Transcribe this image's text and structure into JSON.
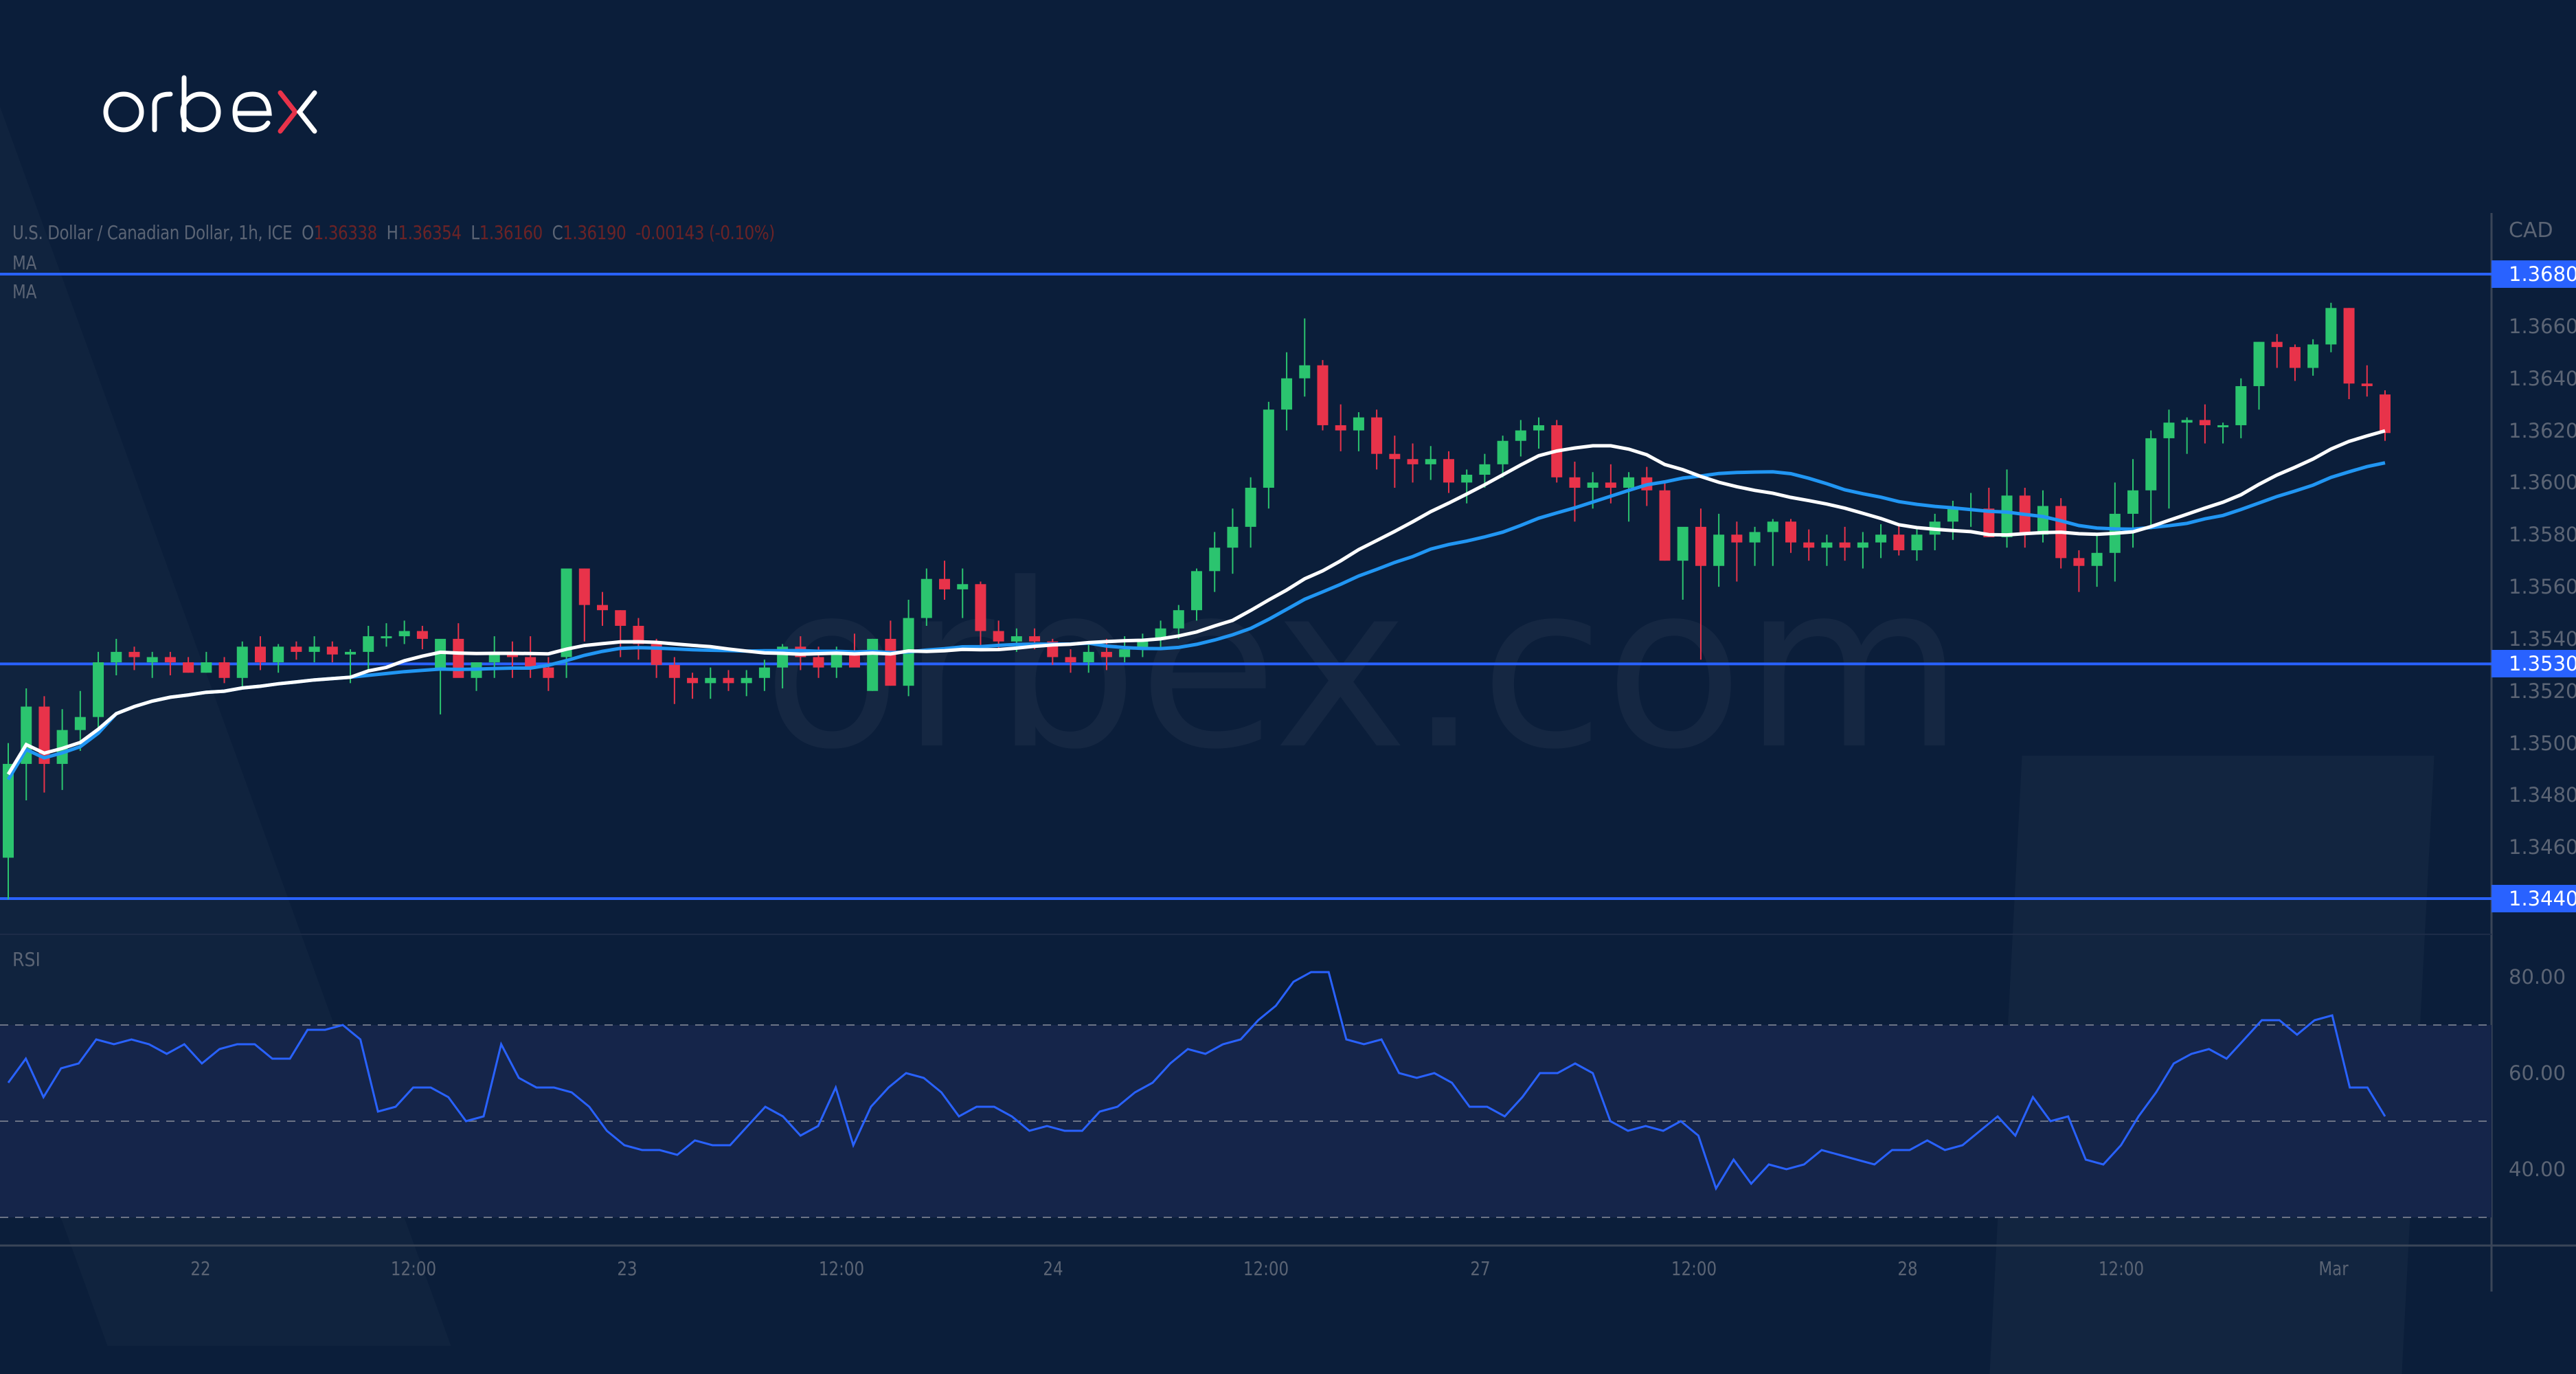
{
  "brand": {
    "logo_text": "orbex",
    "watermark_text": "orbex.com",
    "logo_color": "#ffffff",
    "logo_accent": "#e8334a"
  },
  "header": {
    "symbol": "U.S. Dollar / Canadian Dollar, 1h, ICE",
    "open_label": "O",
    "open": "1.36338",
    "high_label": "H",
    "high": "1.36354",
    "low_label": "L",
    "low": "1.36160",
    "close_label": "C",
    "close": "1.36190",
    "change": "-0.00143 (-0.10%)",
    "ma1_label": "MA",
    "ma2_label": "MA"
  },
  "price_axis": {
    "currency": "CAD",
    "ticks": [
      "1.36600",
      "1.36400",
      "1.36200",
      "1.36000",
      "1.35800",
      "1.35600",
      "1.35400",
      "1.35200",
      "1.35000",
      "1.34800",
      "1.34600"
    ],
    "levels": [
      {
        "label": "1.36800",
        "price": 1.368
      },
      {
        "label": "1.35304",
        "price": 1.35304
      },
      {
        "label": "1.34403",
        "price": 1.34403
      }
    ]
  },
  "rsi_panel": {
    "label": "RSI",
    "ticks": [
      "80.00",
      "60.00",
      "40.00"
    ],
    "upper_band": 70,
    "middle_band": 50,
    "lower_band": 30
  },
  "time_axis": {
    "ticks": [
      "22",
      "12:00",
      "23",
      "12:00",
      "24",
      "12:00",
      "27",
      "12:00",
      "28",
      "12:00",
      "Mar"
    ]
  },
  "colors": {
    "background": "#0b1e3a",
    "up": "#2bc46f",
    "down": "#e8334a",
    "level_line": "#2962ff",
    "ma_fast": "#ffffff",
    "ma_slow": "#2196f3",
    "rsi_line": "#2962ff",
    "rsi_band_fill": "#15254a"
  },
  "chart_data": {
    "type": "candlestick",
    "title": "U.S. Dollar / Canadian Dollar, 1h, ICE",
    "xlabel": "",
    "ylabel": "CAD",
    "ylim": [
      1.3432,
      1.37
    ],
    "x_ticks": [
      "22",
      "12:00",
      "23",
      "12:00",
      "24",
      "12:00",
      "27",
      "12:00",
      "28",
      "12:00",
      "Mar"
    ],
    "horizontal_levels": [
      1.368,
      1.35304,
      1.34403
    ],
    "last_bar": {
      "open": 1.36338,
      "high": 1.36354,
      "low": 1.3616,
      "close": 1.3619
    },
    "candles_ohlc": [
      [
        1.3456,
        1.35,
        1.344,
        1.3492
      ],
      [
        1.3492,
        1.3521,
        1.3478,
        1.3514
      ],
      [
        1.3514,
        1.3518,
        1.3481,
        1.3492
      ],
      [
        1.3492,
        1.3513,
        1.3482,
        1.3505
      ],
      [
        1.3505,
        1.352,
        1.3497,
        1.351
      ],
      [
        1.351,
        1.3535,
        1.3505,
        1.3531
      ],
      [
        1.3531,
        1.354,
        1.3526,
        1.3535
      ],
      [
        1.3535,
        1.3537,
        1.3528,
        1.3533
      ],
      [
        1.3531,
        1.3535,
        1.3525,
        1.3533
      ],
      [
        1.3533,
        1.3535,
        1.3526,
        1.3531
      ],
      [
        1.3531,
        1.3533,
        1.3527,
        1.3527
      ],
      [
        1.3527,
        1.3535,
        1.3527,
        1.3531
      ],
      [
        1.3531,
        1.3533,
        1.3523,
        1.3525
      ],
      [
        1.3525,
        1.3539,
        1.3521,
        1.3537
      ],
      [
        1.3537,
        1.3541,
        1.3528,
        1.3531
      ],
      [
        1.3531,
        1.3538,
        1.3527,
        1.3537
      ],
      [
        1.3537,
        1.3539,
        1.3532,
        1.3535
      ],
      [
        1.3535,
        1.3541,
        1.3531,
        1.3537
      ],
      [
        1.3537,
        1.3539,
        1.3531,
        1.3534
      ],
      [
        1.3534,
        1.3536,
        1.3523,
        1.3535
      ],
      [
        1.3535,
        1.3545,
        1.3528,
        1.3541
      ],
      [
        1.3541,
        1.3546,
        1.3537,
        1.3541
      ],
      [
        1.3541,
        1.3547,
        1.3538,
        1.3543
      ],
      [
        1.3543,
        1.3545,
        1.3536,
        1.354
      ],
      [
        1.3528,
        1.3537,
        1.3511,
        1.354
      ],
      [
        1.354,
        1.3546,
        1.3531,
        1.3525
      ],
      [
        1.3525,
        1.3531,
        1.352,
        1.3531
      ],
      [
        1.3531,
        1.3541,
        1.3525,
        1.3535
      ],
      [
        1.3535,
        1.3539,
        1.3525,
        1.3533
      ],
      [
        1.3533,
        1.3541,
        1.3525,
        1.3529
      ],
      [
        1.3529,
        1.3533,
        1.352,
        1.3525
      ],
      [
        1.3533,
        1.3537,
        1.3525,
        1.3567
      ],
      [
        1.3567,
        1.3567,
        1.3539,
        1.3553
      ],
      [
        1.3553,
        1.3558,
        1.3545,
        1.3551
      ],
      [
        1.3551,
        1.3551,
        1.3533,
        1.3545
      ],
      [
        1.3545,
        1.3548,
        1.3532,
        1.3538
      ],
      [
        1.3538,
        1.354,
        1.3525,
        1.353
      ],
      [
        1.353,
        1.3533,
        1.3515,
        1.3525
      ],
      [
        1.3525,
        1.3527,
        1.3517,
        1.3523
      ],
      [
        1.3523,
        1.3529,
        1.3517,
        1.3525
      ],
      [
        1.3525,
        1.3528,
        1.352,
        1.3523
      ],
      [
        1.3523,
        1.3528,
        1.3518,
        1.3525
      ],
      [
        1.3525,
        1.3532,
        1.352,
        1.3529
      ],
      [
        1.3529,
        1.3538,
        1.3521,
        1.3537
      ],
      [
        1.3537,
        1.3541,
        1.3528,
        1.3533
      ],
      [
        1.3533,
        1.3537,
        1.3525,
        1.3529
      ],
      [
        1.3529,
        1.3537,
        1.3525,
        1.3535
      ],
      [
        1.3535,
        1.3542,
        1.3531,
        1.3529
      ],
      [
        1.352,
        1.354,
        1.352,
        1.354
      ],
      [
        1.354,
        1.3547,
        1.3522,
        1.3522
      ],
      [
        1.3522,
        1.3555,
        1.3518,
        1.3548
      ],
      [
        1.3548,
        1.3567,
        1.3545,
        1.3563
      ],
      [
        1.3563,
        1.357,
        1.3555,
        1.3559
      ],
      [
        1.3559,
        1.3567,
        1.3548,
        1.3561
      ],
      [
        1.3561,
        1.3562,
        1.3536,
        1.3543
      ],
      [
        1.3543,
        1.3547,
        1.3536,
        1.3539
      ],
      [
        1.3539,
        1.3544,
        1.3535,
        1.3541
      ],
      [
        1.3541,
        1.3544,
        1.3536,
        1.3539
      ],
      [
        1.3539,
        1.354,
        1.353,
        1.3533
      ],
      [
        1.3533,
        1.3536,
        1.3527,
        1.3531
      ],
      [
        1.3531,
        1.3538,
        1.3527,
        1.3535
      ],
      [
        1.3535,
        1.354,
        1.3528,
        1.3533
      ],
      [
        1.3533,
        1.3541,
        1.3531,
        1.3536
      ],
      [
        1.3536,
        1.3542,
        1.3533,
        1.354
      ],
      [
        1.354,
        1.3547,
        1.3536,
        1.3544
      ],
      [
        1.3544,
        1.3553,
        1.354,
        1.3551
      ],
      [
        1.3551,
        1.3567,
        1.3547,
        1.3566
      ],
      [
        1.3566,
        1.3581,
        1.3558,
        1.3575
      ],
      [
        1.3575,
        1.359,
        1.3565,
        1.3583
      ],
      [
        1.3583,
        1.3602,
        1.3575,
        1.3598
      ],
      [
        1.3598,
        1.3631,
        1.359,
        1.3628
      ],
      [
        1.3628,
        1.365,
        1.362,
        1.364
      ],
      [
        1.364,
        1.3663,
        1.3633,
        1.3645
      ],
      [
        1.3645,
        1.3647,
        1.362,
        1.3622
      ],
      [
        1.3622,
        1.363,
        1.3612,
        1.362
      ],
      [
        1.362,
        1.3627,
        1.3612,
        1.3625
      ],
      [
        1.3625,
        1.3628,
        1.3605,
        1.3611
      ],
      [
        1.3611,
        1.3618,
        1.3598,
        1.3609
      ],
      [
        1.3609,
        1.3615,
        1.36,
        1.3607
      ],
      [
        1.3607,
        1.3614,
        1.3601,
        1.3609
      ],
      [
        1.3609,
        1.3612,
        1.3596,
        1.36
      ],
      [
        1.36,
        1.3605,
        1.3592,
        1.3603
      ],
      [
        1.3603,
        1.3611,
        1.3598,
        1.3607
      ],
      [
        1.3607,
        1.3618,
        1.3602,
        1.3616
      ],
      [
        1.3616,
        1.3624,
        1.361,
        1.362
      ],
      [
        1.362,
        1.3625,
        1.3613,
        1.3622
      ],
      [
        1.3622,
        1.3624,
        1.36,
        1.3602
      ],
      [
        1.3602,
        1.3608,
        1.3585,
        1.3598
      ],
      [
        1.3598,
        1.3604,
        1.359,
        1.36
      ],
      [
        1.36,
        1.3607,
        1.3592,
        1.3598
      ],
      [
        1.3598,
        1.3604,
        1.3585,
        1.3602
      ],
      [
        1.3602,
        1.3606,
        1.3591,
        1.3597
      ],
      [
        1.3597,
        1.36,
        1.357,
        1.357
      ],
      [
        1.357,
        1.358,
        1.3555,
        1.3583
      ],
      [
        1.3583,
        1.359,
        1.3532,
        1.3568
      ],
      [
        1.3568,
        1.3588,
        1.356,
        1.358
      ],
      [
        1.358,
        1.3585,
        1.3562,
        1.3577
      ],
      [
        1.3577,
        1.3583,
        1.3568,
        1.3581
      ],
      [
        1.3581,
        1.3586,
        1.3568,
        1.3585
      ],
      [
        1.3585,
        1.3586,
        1.3573,
        1.3577
      ],
      [
        1.3577,
        1.3582,
        1.357,
        1.3575
      ],
      [
        1.3575,
        1.358,
        1.3568,
        1.3577
      ],
      [
        1.3577,
        1.3583,
        1.357,
        1.3575
      ],
      [
        1.3575,
        1.3581,
        1.3567,
        1.3577
      ],
      [
        1.3577,
        1.3584,
        1.3571,
        1.358
      ],
      [
        1.358,
        1.3584,
        1.3572,
        1.3574
      ],
      [
        1.3574,
        1.3582,
        1.357,
        1.358
      ],
      [
        1.358,
        1.3588,
        1.3574,
        1.3585
      ],
      [
        1.3585,
        1.3593,
        1.3578,
        1.359
      ],
      [
        1.359,
        1.3596,
        1.3583,
        1.359
      ],
      [
        1.359,
        1.3598,
        1.3585,
        1.3579
      ],
      [
        1.3579,
        1.3605,
        1.3575,
        1.3595
      ],
      [
        1.3595,
        1.3598,
        1.3575,
        1.358
      ],
      [
        1.358,
        1.3597,
        1.3577,
        1.3591
      ],
      [
        1.3591,
        1.3594,
        1.3567,
        1.3571
      ],
      [
        1.3571,
        1.3574,
        1.3558,
        1.3568
      ],
      [
        1.3568,
        1.358,
        1.356,
        1.3573
      ],
      [
        1.3573,
        1.36,
        1.3562,
        1.3588
      ],
      [
        1.3588,
        1.3609,
        1.3575,
        1.3597
      ],
      [
        1.3597,
        1.362,
        1.3582,
        1.3617
      ],
      [
        1.3617,
        1.3628,
        1.359,
        1.3623
      ],
      [
        1.3623,
        1.3625,
        1.3611,
        1.3624
      ],
      [
        1.3624,
        1.363,
        1.3615,
        1.3622
      ],
      [
        1.3622,
        1.3623,
        1.3615,
        1.3622
      ],
      [
        1.3622,
        1.364,
        1.3617,
        1.3637
      ],
      [
        1.3637,
        1.3654,
        1.3628,
        1.3654
      ],
      [
        1.3654,
        1.3657,
        1.3644,
        1.3652
      ],
      [
        1.3652,
        1.3653,
        1.3639,
        1.3644
      ],
      [
        1.3644,
        1.3655,
        1.3641,
        1.3653
      ],
      [
        1.3653,
        1.3669,
        1.365,
        1.3667
      ],
      [
        1.3667,
        1.3667,
        1.3632,
        1.3638
      ],
      [
        1.3638,
        1.3645,
        1.3633,
        1.3637
      ],
      [
        1.36338,
        1.36354,
        1.3616,
        1.3619
      ]
    ],
    "rsi_series": [
      58,
      63,
      55,
      61,
      62,
      67,
      66,
      67,
      66,
      64,
      66,
      62,
      65,
      66,
      66,
      63,
      63,
      69,
      69,
      70,
      67,
      52,
      53,
      57,
      57,
      55,
      50,
      51,
      66,
      59,
      57,
      57,
      56,
      53,
      48,
      45,
      44,
      44,
      43,
      46,
      45,
      45,
      49,
      53,
      51,
      47,
      49,
      57,
      45,
      53,
      57,
      60,
      59,
      56,
      51,
      53,
      53,
      51,
      48,
      49,
      48,
      48,
      52,
      53,
      56,
      58,
      62,
      65,
      64,
      66,
      67,
      71,
      74,
      79,
      81,
      81,
      67,
      66,
      67,
      60,
      59,
      60,
      58,
      53,
      53,
      51,
      55,
      60,
      60,
      62,
      60,
      50,
      48,
      49,
      48,
      50,
      47,
      36,
      42,
      37,
      41,
      40,
      41,
      44,
      43,
      42,
      41,
      44,
      44,
      46,
      44,
      45,
      48,
      51,
      47,
      55,
      50,
      51,
      42,
      41,
      45,
      51,
      56,
      62,
      64,
      65,
      63,
      67,
      71,
      71,
      68,
      71,
      72,
      57,
      57,
      51
    ],
    "ma_fast_end": 1.3614,
    "ma_slow_end": 1.3603,
    "rsi_ylim": [
      24,
      85
    ],
    "rsi_bands": [
      30,
      50,
      70
    ]
  }
}
